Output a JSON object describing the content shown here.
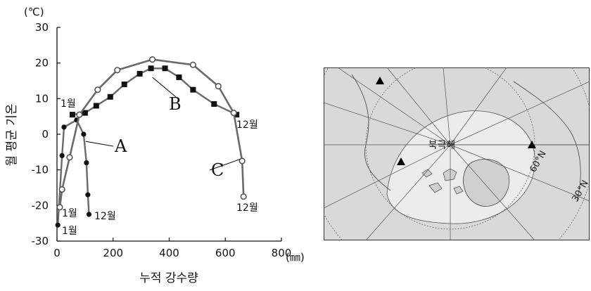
{
  "chart_data": {
    "type": "line",
    "unit_y": "(℃)",
    "unit_x": "(㎜)",
    "xlabel": "누적 강수량",
    "ylabel": "월 평균 기온",
    "xlim": [
      0,
      800
    ],
    "ylim": [
      -30,
      30
    ],
    "xticks": [
      "0",
      "200",
      "400",
      "600",
      "800"
    ],
    "yticks": [
      "30",
      "20",
      "10",
      "0",
      "-10",
      "-20",
      "-30"
    ],
    "series": [
      {
        "name": "A",
        "marker": "filled-circle",
        "start_label": "1월",
        "end_label": "12월",
        "x": [
          3,
          18,
          25,
          70,
          95,
          105,
          110,
          114
        ],
        "y": [
          -25.5,
          -6,
          2,
          4,
          0,
          -8,
          -17,
          -22.5
        ]
      },
      {
        "name": "B",
        "marker": "filled-square",
        "start_label": "1월",
        "end_label": "12월",
        "x": [
          55,
          100,
          140,
          190,
          240,
          295,
          335,
          385,
          435,
          485,
          560,
          640
        ],
        "y": [
          5.5,
          6,
          8,
          10.5,
          14,
          17,
          18.5,
          18.5,
          16,
          12.5,
          8.5,
          5.5
        ]
      },
      {
        "name": "C",
        "marker": "open-circle",
        "start_label": "1월",
        "end_label": "12월",
        "x": [
          10,
          18,
          45,
          80,
          145,
          215,
          340,
          485,
          575,
          630,
          660,
          665
        ],
        "y": [
          -20.5,
          -15.5,
          -6.5,
          5.5,
          12.5,
          18,
          21,
          19.5,
          13.5,
          6,
          -7.5,
          -17.5
        ]
      }
    ]
  },
  "map": {
    "sea_label": "북극해",
    "lat_labels": [
      "60°N",
      "30°N"
    ],
    "markers_count": 3
  }
}
